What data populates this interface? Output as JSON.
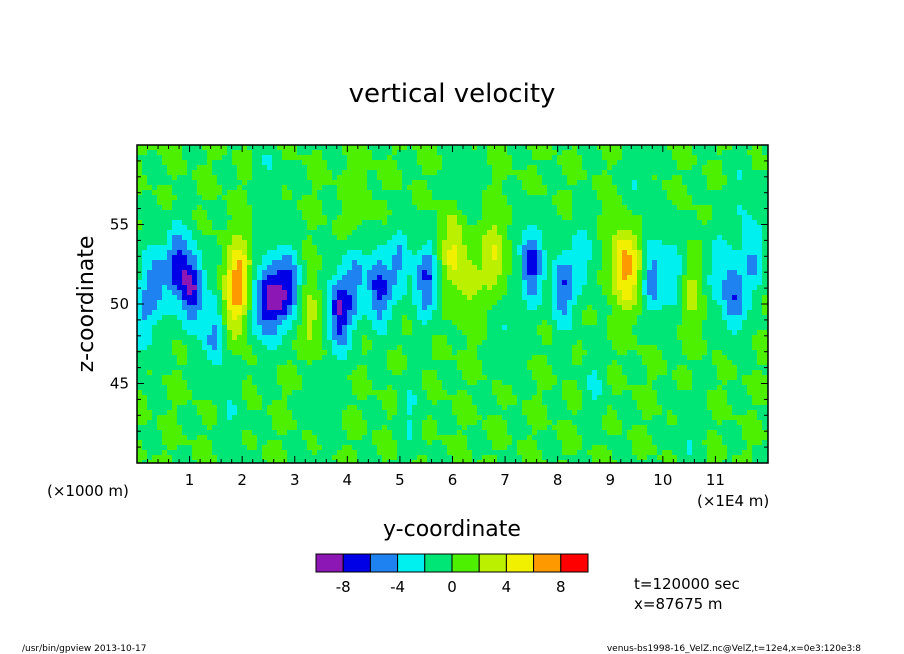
{
  "chart_data": {
    "type": "heatmap",
    "title": "vertical velocity",
    "xlabel": "y-coordinate",
    "ylabel": "z-coordinate",
    "x_unit_left": "(×1000 m)",
    "x_unit_right": "(×1E4 m)",
    "x_ticks": [
      "1",
      "2",
      "3",
      "4",
      "5",
      "6",
      "7",
      "8",
      "9",
      "10",
      "11"
    ],
    "x_tick_values": [
      1,
      2,
      3,
      4,
      5,
      6,
      7,
      8,
      9,
      10,
      11
    ],
    "xlim": [
      0,
      12
    ],
    "y_ticks": [
      "45",
      "50",
      "55"
    ],
    "y_tick_values": [
      45,
      50,
      55
    ],
    "ylim": [
      40,
      60
    ],
    "colorbar": {
      "levels": [
        -10,
        -8,
        -6,
        -4,
        -2,
        0,
        2,
        4,
        6,
        8,
        10
      ],
      "colors": [
        "#8c17b4",
        "#0000e6",
        "#1e82f0",
        "#00f0f0",
        "#00e676",
        "#4cf000",
        "#bbf000",
        "#f0f000",
        "#ff9900",
        "#ff0000",
        "#ff9a9a"
      ],
      "tick_labels": [
        "-8",
        "-4",
        "0",
        "4",
        "8"
      ],
      "tick_values": [
        -8,
        -4,
        0,
        4,
        8
      ]
    },
    "blobs": [
      {
        "y": 0.35,
        "z": 51.5,
        "amp": -5
      },
      {
        "y": 0.75,
        "z": 52.5,
        "amp": -6
      },
      {
        "y": 1.05,
        "z": 51.0,
        "amp": -8
      },
      {
        "y": 1.5,
        "z": 48.0,
        "amp": -5
      },
      {
        "y": 1.8,
        "z": 49.5,
        "amp": 3
      },
      {
        "y": 1.95,
        "z": 51.5,
        "amp": 7
      },
      {
        "y": 2.35,
        "z": 50.0,
        "amp": -5
      },
      {
        "y": 2.6,
        "z": 50.5,
        "amp": -7
      },
      {
        "y": 2.9,
        "z": 51.0,
        "amp": -6
      },
      {
        "y": 3.3,
        "z": 49.0,
        "amp": 3
      },
      {
        "y": 3.85,
        "z": 49.5,
        "amp": -8
      },
      {
        "y": 4.15,
        "z": 51.5,
        "amp": -4
      },
      {
        "y": 4.6,
        "z": 51.0,
        "amp": -7
      },
      {
        "y": 5.0,
        "z": 52.5,
        "amp": -4
      },
      {
        "y": 5.5,
        "z": 51.5,
        "amp": -6
      },
      {
        "y": 6.0,
        "z": 53.5,
        "amp": 4
      },
      {
        "y": 6.3,
        "z": 51.5,
        "amp": 3
      },
      {
        "y": 6.8,
        "z": 53.0,
        "amp": 4
      },
      {
        "y": 7.5,
        "z": 52.5,
        "amp": -7
      },
      {
        "y": 8.1,
        "z": 51.0,
        "amp": -6
      },
      {
        "y": 8.5,
        "z": 53.0,
        "amp": -3
      },
      {
        "y": 9.2,
        "z": 52.5,
        "amp": 5
      },
      {
        "y": 9.45,
        "z": 52.0,
        "amp": 4
      },
      {
        "y": 9.8,
        "z": 51.5,
        "amp": -5
      },
      {
        "y": 10.2,
        "z": 52.0,
        "amp": -4
      },
      {
        "y": 10.5,
        "z": 51.0,
        "amp": 3
      },
      {
        "y": 11.0,
        "z": 52.5,
        "amp": -3
      },
      {
        "y": 11.35,
        "z": 50.5,
        "amp": -6
      },
      {
        "y": 11.7,
        "z": 53.0,
        "amp": -4
      },
      {
        "y": 0.1,
        "z": 49.0,
        "amp": -4
      },
      {
        "y": 7.0,
        "z": 48.0,
        "amp": -2
      },
      {
        "y": 3.5,
        "z": 44.0,
        "amp": -2
      },
      {
        "y": 8.7,
        "z": 45.0,
        "amp": -2
      },
      {
        "y": 5.2,
        "z": 43.0,
        "amp": -2
      },
      {
        "y": 10.5,
        "z": 42.0,
        "amp": -2
      },
      {
        "y": 1.8,
        "z": 42.5,
        "amp": -2
      },
      {
        "y": 6.2,
        "z": 57.5,
        "amp": -2
      },
      {
        "y": 2.5,
        "z": 58.0,
        "amp": -2
      },
      {
        "y": 9.5,
        "z": 57.5,
        "amp": -2
      },
      {
        "y": 4.2,
        "z": 56.5,
        "amp": 1.5
      },
      {
        "y": 11.5,
        "z": 57.0,
        "amp": -2
      }
    ]
  },
  "annotations": {
    "time": "t=120000 sec",
    "position": "x=87675 m"
  },
  "footer": {
    "left": "/usr/bin/gpview  2013-10-17",
    "right": "venus-bs1998-16_VelZ.nc@VelZ,t=12e4,x=0e3:120e3:8"
  }
}
